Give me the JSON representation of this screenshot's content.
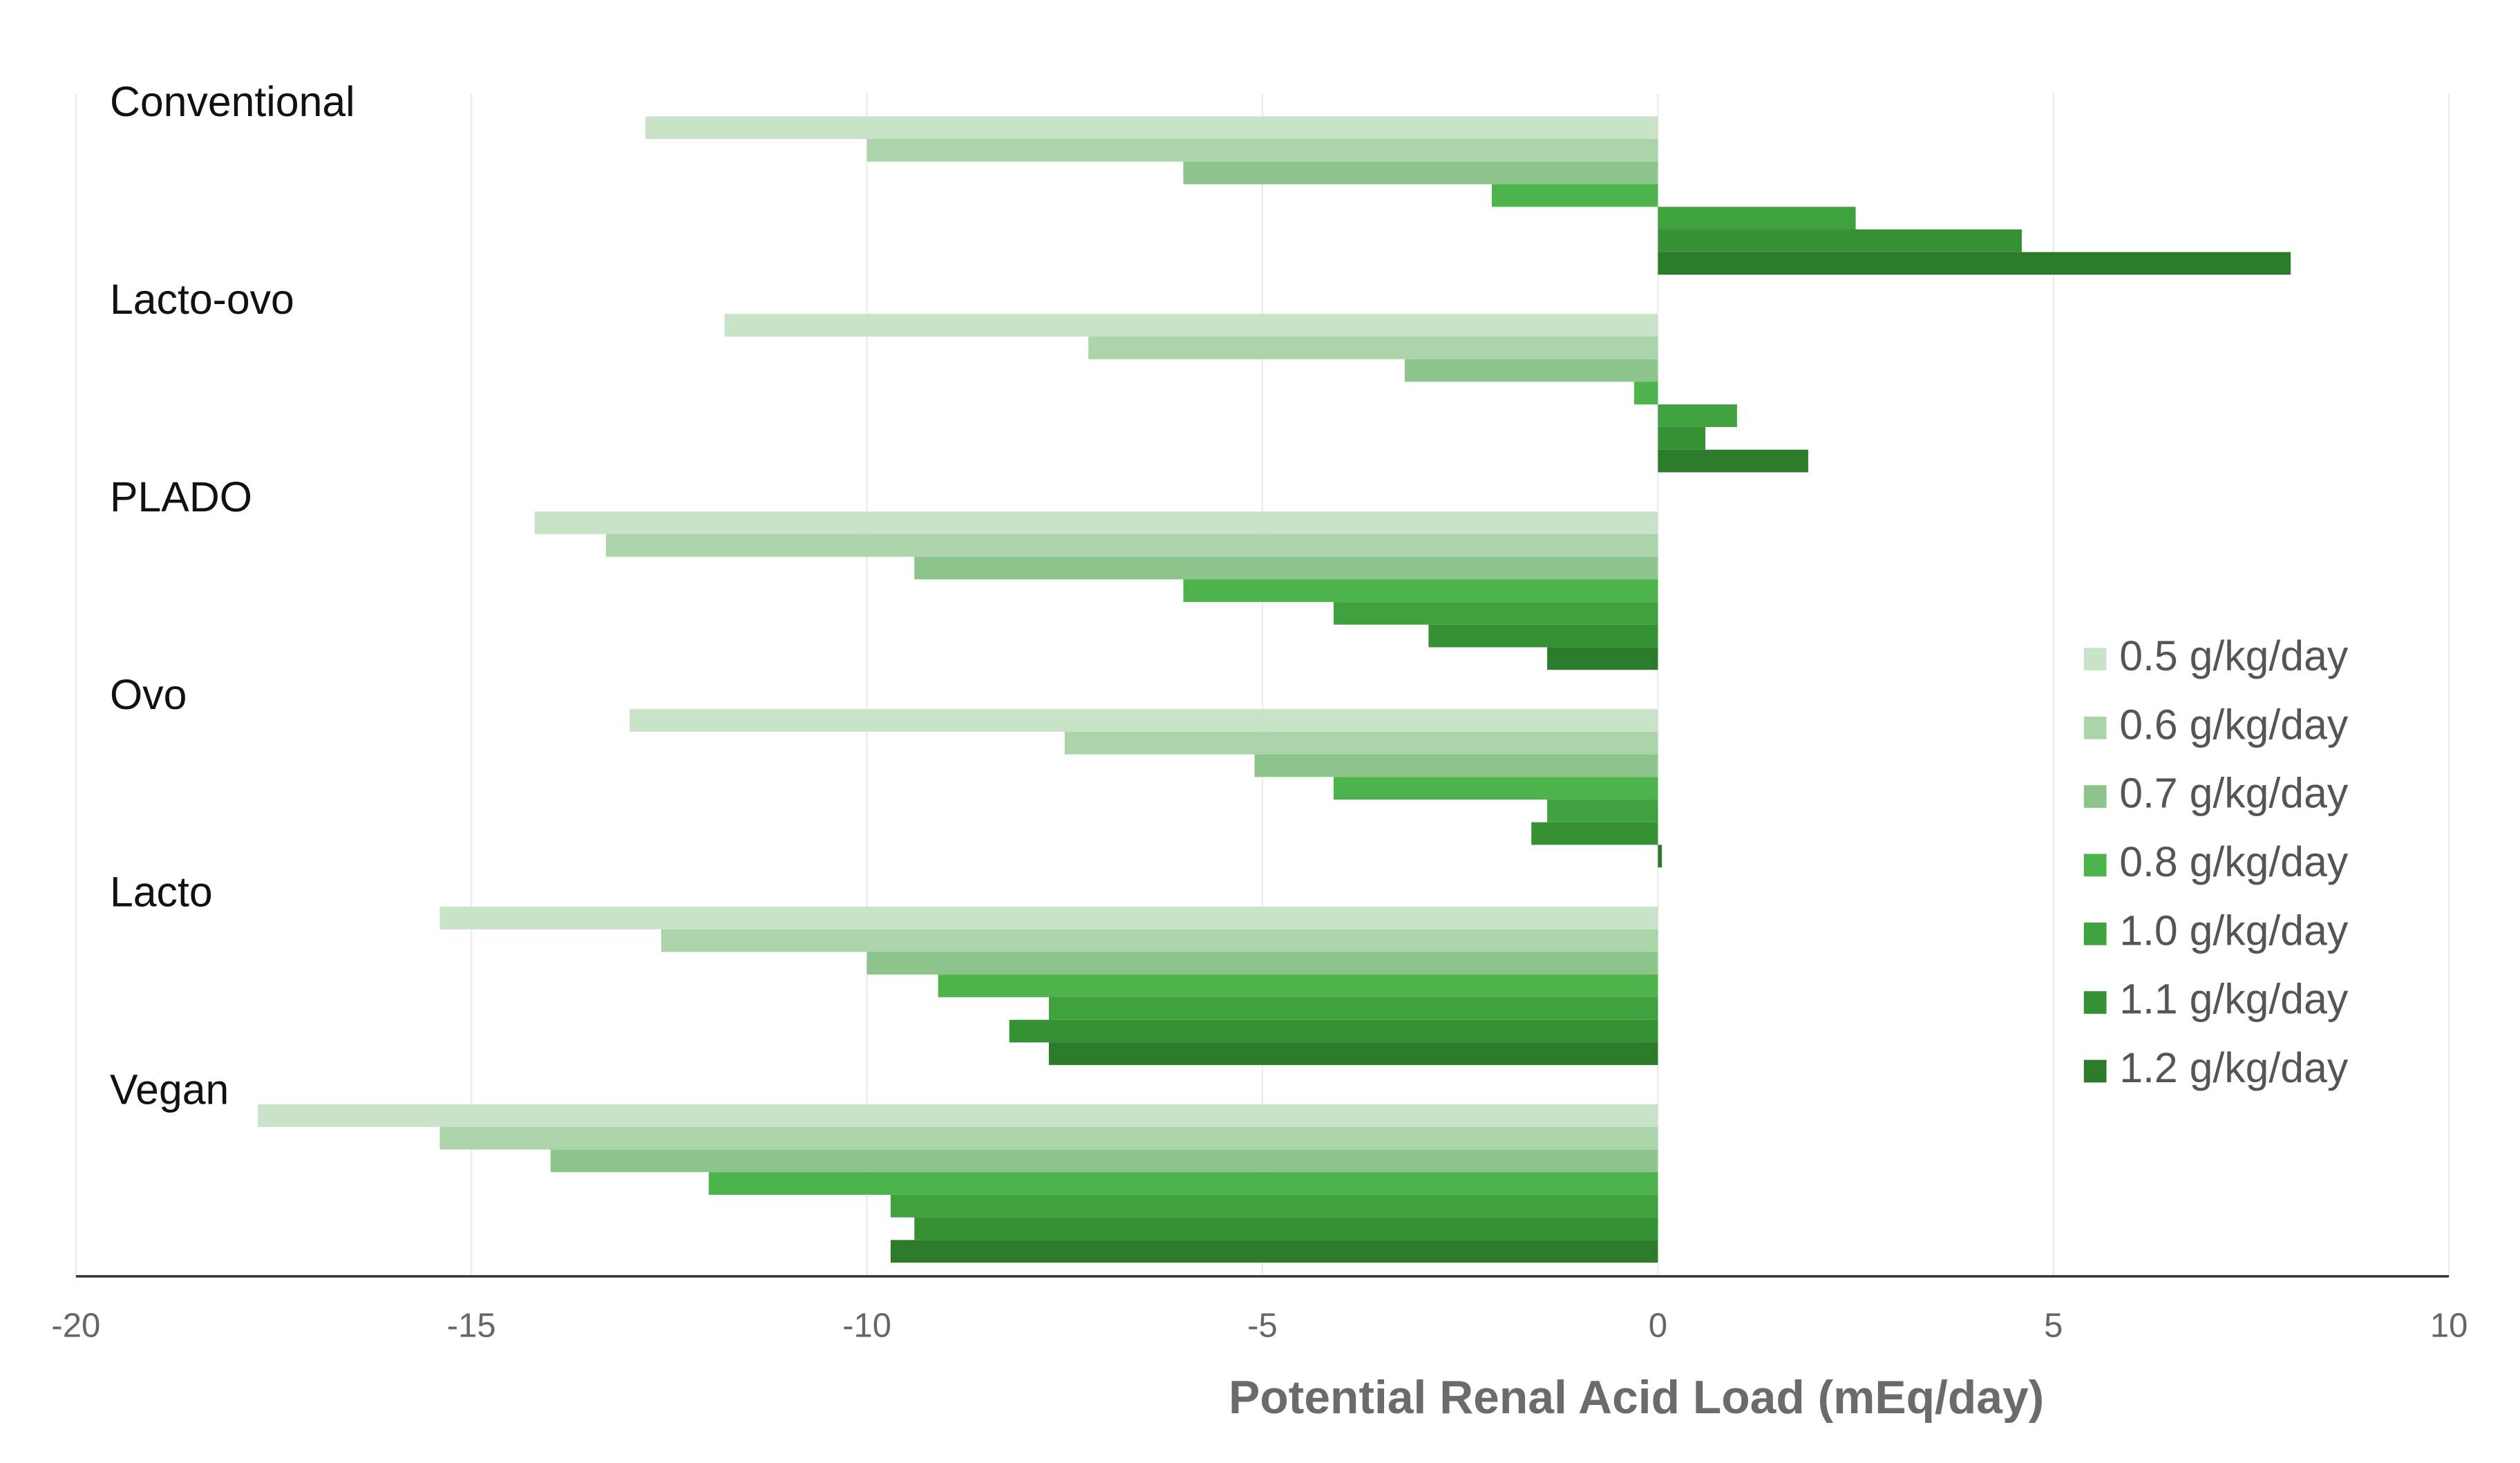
{
  "chart_data": {
    "type": "barh",
    "x_label": "Potential Renal Acid Load (mEq/day)",
    "categories": [
      "Conventional",
      "Lacto-ovo",
      "PLADO",
      "Ovo",
      "Lacto",
      "Vegan"
    ],
    "series": [
      {
        "name": "0.5 g/kg/day",
        "color": "#c9e3c9",
        "values": [
          -12.8,
          -11.8,
          -14.2,
          -13.0,
          -15.4,
          -17.7
        ]
      },
      {
        "name": "0.6 g/kg/day",
        "color": "#abd4ab",
        "values": [
          -10.0,
          -7.2,
          -13.3,
          -7.5,
          -12.6,
          -15.4
        ]
      },
      {
        "name": "0.7 g/kg/day",
        "color": "#8cc48c",
        "values": [
          -6.0,
          -3.2,
          -9.4,
          -5.1,
          -10.0,
          -14.0
        ]
      },
      {
        "name": "0.8 g/kg/day",
        "color": "#4db34b",
        "values": [
          -2.1,
          -0.3,
          -6.0,
          -4.1,
          -9.1,
          -12.0
        ]
      },
      {
        "name": "1.0 g/kg/day",
        "color": "#40a23e",
        "values": [
          2.5,
          1.0,
          -4.1,
          -1.4,
          -7.7,
          -9.7
        ]
      },
      {
        "name": "1.1 g/kg/day",
        "color": "#359134",
        "values": [
          4.6,
          0.6,
          -2.9,
          -1.6,
          -8.2,
          -9.4
        ]
      },
      {
        "name": "1.2 g/kg/day",
        "color": "#2b7b2a",
        "values": [
          8.0,
          1.9,
          -1.4,
          0.05,
          -7.7,
          -9.7
        ]
      }
    ],
    "xlim": [
      -20,
      10
    ],
    "xticks": [
      -20,
      -15,
      -10,
      -5,
      0,
      5,
      10
    ],
    "grid": true,
    "legend": "right"
  }
}
